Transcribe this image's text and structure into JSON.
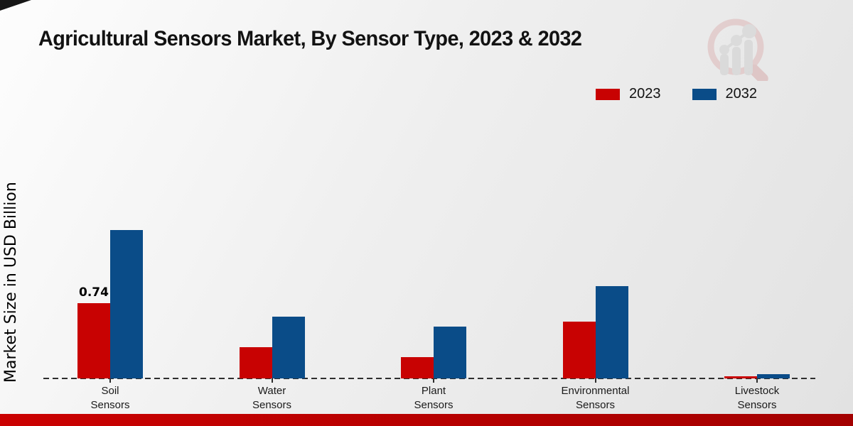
{
  "chart_data": {
    "type": "bar",
    "title": "Agricultural Sensors Market, By Sensor Type, 2023 & 2032",
    "ylabel": "Market Size in USD Billion",
    "xlabel": "",
    "categories": [
      "Soil Sensors",
      "Water Sensors",
      "Plant Sensors",
      "Environmental Sensors",
      "Livestock Sensors"
    ],
    "series": [
      {
        "name": "2023",
        "color": "#c80202",
        "values": [
          0.74,
          0.31,
          0.21,
          0.56,
          0.02
        ]
      },
      {
        "name": "2032",
        "color": "#0a4c88",
        "values": [
          1.46,
          0.61,
          0.51,
          0.91,
          0.04
        ]
      }
    ],
    "bar_labels": [
      {
        "series": "2023",
        "category": "Soil Sensors",
        "text": "0.74"
      }
    ],
    "ylim": [
      0,
      1.55
    ],
    "grid": false,
    "legend_position": "top-right",
    "baseline_style": "dashed"
  },
  "colors": {
    "series_2023": "#c80202",
    "series_2032": "#0a4c88",
    "footer_bar": "#c30101",
    "baseline": "#2e2e2e"
  },
  "icons": {
    "watermark": "market-research-magnifier-logo"
  }
}
